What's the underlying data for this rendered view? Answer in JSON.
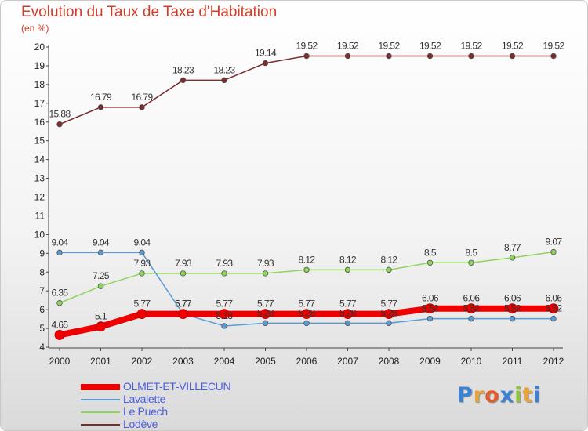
{
  "header": {
    "title": "Evolution du Taux de Taxe d'Habitation",
    "subtitle": "(en %)"
  },
  "logo": {
    "text": "Proxiti",
    "colors": [
      "#3b82d6",
      "#e8a43a",
      "#e35a2b",
      "#3b82d6",
      "#8fc43c",
      "#e8a43a",
      "#3b82d6"
    ]
  },
  "chart_data": {
    "type": "line",
    "x": [
      2000,
      2001,
      2002,
      2003,
      2004,
      2005,
      2006,
      2007,
      2008,
      2009,
      2010,
      2011,
      2012
    ],
    "ylim": [
      4,
      20
    ],
    "yticks": [
      4,
      5,
      6,
      7,
      8,
      9,
      10,
      11,
      12,
      13,
      14,
      15,
      16,
      17,
      18,
      19,
      20
    ],
    "legend_position": "bottom-left",
    "grid": false,
    "series": [
      {
        "name": "OLMET-ET-VILLECUN",
        "color": "#ee0000",
        "values": [
          4.65,
          5.1,
          5.77,
          5.77,
          5.77,
          5.77,
          5.77,
          5.77,
          5.77,
          6.06,
          6.06,
          6.06,
          6.06
        ],
        "labels": [
          "4.65",
          "5.1",
          "5.77",
          "5.77",
          "5.77",
          "5.77",
          "5.77",
          "5.77",
          "5.77",
          "6.06",
          "6.06",
          "6.06",
          "6.06"
        ]
      },
      {
        "name": "Lavalette",
        "color": "#5b9bd5",
        "values": [
          9.04,
          9.04,
          9.04,
          5.77,
          5.13,
          5.28,
          5.28,
          5.28,
          5.28,
          5.52,
          5.52,
          5.52,
          5.52
        ],
        "labels": [
          "9.04",
          "9.04",
          "9.04",
          "5.77",
          "5.13",
          "5.28",
          "5.28",
          "5.28",
          "5.28",
          "5.52",
          "5.52",
          "5.52",
          "5.52"
        ]
      },
      {
        "name": "Le Puech",
        "color": "#8ed45a",
        "values": [
          6.35,
          7.25,
          7.93,
          7.93,
          7.93,
          7.93,
          8.12,
          8.12,
          8.12,
          8.5,
          8.5,
          8.77,
          9.07
        ],
        "labels": [
          "6.35",
          "7.25",
          "7.93",
          "7.93",
          "7.93",
          "7.93",
          "8.12",
          "8.12",
          "8.12",
          "8.5",
          "8.5",
          "8.77",
          "9.07"
        ]
      },
      {
        "name": "Lodève",
        "color": "#7b2c2c",
        "values": [
          15.88,
          16.79,
          16.79,
          18.23,
          18.23,
          19.14,
          19.52,
          19.52,
          19.52,
          19.52,
          19.52,
          19.52,
          19.52
        ],
        "labels": [
          "15.88",
          "16.79",
          "16.79",
          "18.23",
          "18.23",
          "19.14",
          "19.52",
          "19.52",
          "19.52",
          "19.52",
          "19.52",
          "19.52",
          "19.52"
        ]
      }
    ]
  }
}
